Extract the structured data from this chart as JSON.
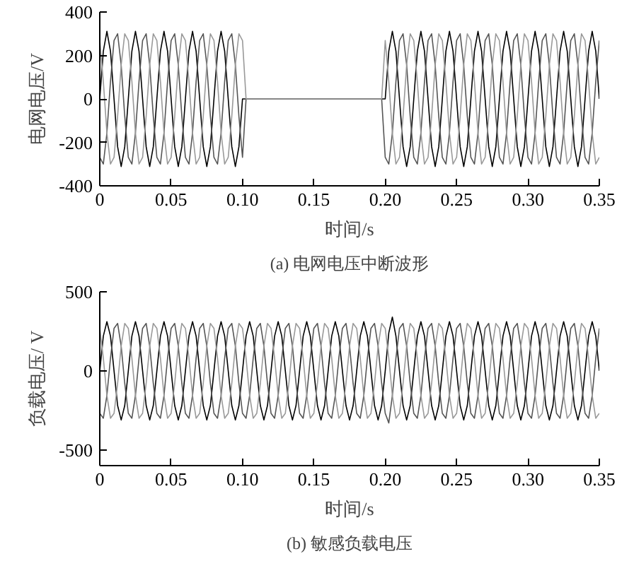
{
  "chart_data": [
    {
      "type": "line",
      "title": "(a) 电网电压中断波形",
      "xlabel": "时间/s",
      "ylabel": "电网电压/V",
      "xlim": [
        0,
        0.35
      ],
      "ylim": [
        -400,
        400
      ],
      "xticks": [
        0,
        0.05,
        {
          "value": 0.1,
          "label": "0.10"
        },
        0.15,
        {
          "value": 0.2,
          "label": "0.20"
        },
        0.25,
        {
          "value": 0.3,
          "label": "0.30"
        },
        0.35
      ],
      "yticks": [
        -400,
        -200,
        0,
        200,
        400
      ],
      "grid": false,
      "x": [
        0,
        0.0025,
        0.005,
        0.0075,
        0.01,
        0.0125,
        0.015,
        0.0175,
        0.02,
        0.0225,
        0.025,
        0.0275,
        0.03,
        0.0325,
        0.035,
        0.0375,
        0.04,
        0.0425,
        0.045,
        0.0475,
        0.05,
        0.0525,
        0.055,
        0.0575,
        0.06,
        0.0625,
        0.065,
        0.0675,
        0.07,
        0.0725,
        0.075,
        0.0775,
        0.08,
        0.0825,
        0.085,
        0.0875,
        0.09,
        0.0925,
        0.095,
        0.0975,
        0.1,
        0.1025,
        0.105,
        0.1075,
        0.11,
        0.1125,
        0.115,
        0.1175,
        0.12,
        0.1225,
        0.125,
        0.1275,
        0.13,
        0.1325,
        0.135,
        0.1375,
        0.14,
        0.1425,
        0.145,
        0.1475,
        0.15,
        0.1525,
        0.155,
        0.1575,
        0.16,
        0.1625,
        0.165,
        0.1675,
        0.17,
        0.1725,
        0.175,
        0.1775,
        0.18,
        0.1825,
        0.185,
        0.1875,
        0.19,
        0.1925,
        0.195,
        0.1975,
        0.2,
        0.2025,
        0.205,
        0.2075,
        0.21,
        0.2125,
        0.215,
        0.2175,
        0.22,
        0.2225,
        0.225,
        0.2275,
        0.23,
        0.2325,
        0.235,
        0.2375,
        0.24,
        0.2425,
        0.245,
        0.2475,
        0.25,
        0.2525,
        0.255,
        0.2575,
        0.26,
        0.2625,
        0.265,
        0.2675,
        0.27,
        0.2725,
        0.275,
        0.2775,
        0.28,
        0.2825,
        0.285,
        0.2875,
        0.29,
        0.2925,
        0.295,
        0.2975,
        0.3,
        0.3025,
        0.305,
        0.3075,
        0.31,
        0.3125,
        0.315,
        0.3175,
        0.32,
        0.3225,
        0.325,
        0.3275,
        0.33,
        0.3325,
        0.335,
        0.3375,
        0.34,
        0.3425,
        0.345,
        0.3475,
        0.35
      ],
      "series": [
        {
          "color": "#000000",
          "values": [
            0,
            220,
            311,
            220,
            0,
            -220,
            -311,
            -220,
            0,
            220,
            311,
            220,
            0,
            -220,
            -311,
            -220,
            0,
            220,
            311,
            220,
            0,
            -220,
            -311,
            -220,
            0,
            220,
            311,
            220,
            0,
            -220,
            -311,
            -220,
            0,
            220,
            311,
            220,
            0,
            -220,
            -311,
            -220,
            0,
            0,
            0,
            0,
            0,
            0,
            0,
            0,
            0,
            0,
            0,
            0,
            0,
            0,
            0,
            0,
            0,
            0,
            0,
            0,
            0,
            0,
            0,
            0,
            0,
            0,
            0,
            0,
            0,
            0,
            0,
            0,
            0,
            0,
            0,
            0,
            0,
            0,
            0,
            0,
            0,
            220,
            311,
            220,
            0,
            -220,
            -311,
            -220,
            0,
            220,
            311,
            220,
            0,
            -220,
            -311,
            -220,
            0,
            220,
            311,
            220,
            0,
            -220,
            -311,
            -220,
            0,
            220,
            311,
            220,
            0,
            -220,
            -311,
            -220,
            0,
            220,
            311,
            220,
            0,
            -220,
            -311,
            -220,
            0,
            220,
            311,
            220,
            0,
            -220,
            -311,
            -220,
            0,
            220,
            311,
            220,
            0,
            -220,
            -311,
            -220,
            0,
            220,
            311,
            220,
            0
          ]
        },
        {
          "color": "#555555",
          "values": [
            -269,
            -300,
            -156,
            80,
            269,
            300,
            156,
            -80,
            -269,
            -300,
            -156,
            80,
            269,
            300,
            156,
            -80,
            -269,
            -300,
            -156,
            80,
            269,
            300,
            156,
            -80,
            -269,
            -300,
            -156,
            80,
            269,
            300,
            156,
            -80,
            -269,
            -300,
            -156,
            80,
            269,
            300,
            156,
            -80,
            -269,
            0,
            0,
            0,
            0,
            0,
            0,
            0,
            0,
            0,
            0,
            0,
            0,
            0,
            0,
            0,
            0,
            0,
            0,
            0,
            0,
            0,
            0,
            0,
            0,
            0,
            0,
            0,
            0,
            0,
            0,
            0,
            0,
            0,
            0,
            0,
            0,
            0,
            0,
            0,
            -269,
            -300,
            -156,
            80,
            269,
            300,
            156,
            -80,
            -269,
            -300,
            -156,
            80,
            269,
            300,
            156,
            -80,
            -269,
            -300,
            -156,
            80,
            269,
            300,
            156,
            -80,
            -269,
            -300,
            -156,
            80,
            269,
            300,
            156,
            -80,
            -269,
            -300,
            -156,
            80,
            269,
            300,
            156,
            -80,
            -269,
            -300,
            -156,
            80,
            269,
            300,
            156,
            -80,
            -269,
            -300,
            -156,
            80,
            269,
            300,
            156,
            -80,
            -269,
            -300,
            -156,
            80,
            269
          ]
        },
        {
          "color": "#999999",
          "values": [
            269,
            80,
            -156,
            -300,
            -269,
            -80,
            156,
            300,
            269,
            80,
            -156,
            -300,
            -269,
            -80,
            156,
            300,
            269,
            80,
            -156,
            -300,
            -269,
            -80,
            156,
            300,
            269,
            80,
            -156,
            -300,
            -269,
            -80,
            156,
            300,
            269,
            80,
            -156,
            -300,
            -269,
            -80,
            156,
            300,
            269,
            0,
            0,
            0,
            0,
            0,
            0,
            0,
            0,
            0,
            0,
            0,
            0,
            0,
            0,
            0,
            0,
            0,
            0,
            0,
            0,
            0,
            0,
            0,
            0,
            0,
            0,
            0,
            0,
            0,
            0,
            0,
            0,
            0,
            0,
            0,
            0,
            0,
            0,
            0,
            269,
            80,
            -156,
            -300,
            -269,
            -80,
            156,
            300,
            269,
            80,
            -156,
            -300,
            -269,
            -80,
            156,
            300,
            269,
            80,
            -156,
            -300,
            -269,
            -80,
            156,
            300,
            269,
            80,
            -156,
            -300,
            -269,
            -80,
            156,
            300,
            269,
            80,
            -156,
            -300,
            -269,
            -80,
            156,
            300,
            269,
            80,
            -156,
            -300,
            -269,
            -80,
            156,
            300,
            269,
            80,
            -156,
            -300,
            -269,
            -80,
            156,
            300,
            269,
            80,
            -156,
            -300,
            -269
          ]
        }
      ]
    },
    {
      "type": "line",
      "title": "(b) 敏感负载电压",
      "xlabel": "时间/s",
      "ylabel": "负载电压/ V",
      "xlim": [
        0,
        0.35
      ],
      "ylim": [
        -600,
        500
      ],
      "xticks": [
        0,
        0.05,
        {
          "value": 0.1,
          "label": "0.10"
        },
        0.15,
        {
          "value": 0.2,
          "label": "0.20"
        },
        0.25,
        {
          "value": 0.3,
          "label": "0.30"
        },
        0.35
      ],
      "yticks": [
        -500,
        0,
        500
      ],
      "grid": false,
      "x": [
        0,
        0.0025,
        0.005,
        0.0075,
        0.01,
        0.0125,
        0.015,
        0.0175,
        0.02,
        0.0225,
        0.025,
        0.0275,
        0.03,
        0.0325,
        0.035,
        0.0375,
        0.04,
        0.0425,
        0.045,
        0.0475,
        0.05,
        0.0525,
        0.055,
        0.0575,
        0.06,
        0.0625,
        0.065,
        0.0675,
        0.07,
        0.0725,
        0.075,
        0.0775,
        0.08,
        0.0825,
        0.085,
        0.0875,
        0.09,
        0.0925,
        0.095,
        0.0975,
        0.1,
        0.1025,
        0.105,
        0.1075,
        0.11,
        0.1125,
        0.115,
        0.1175,
        0.12,
        0.1225,
        0.125,
        0.1275,
        0.13,
        0.1325,
        0.135,
        0.1375,
        0.14,
        0.1425,
        0.145,
        0.1475,
        0.15,
        0.1525,
        0.155,
        0.1575,
        0.16,
        0.1625,
        0.165,
        0.1675,
        0.17,
        0.1725,
        0.175,
        0.1775,
        0.18,
        0.1825,
        0.185,
        0.1875,
        0.19,
        0.1925,
        0.195,
        0.1975,
        0.2,
        0.2025,
        0.205,
        0.2075,
        0.21,
        0.2125,
        0.215,
        0.2175,
        0.22,
        0.2225,
        0.225,
        0.2275,
        0.23,
        0.2325,
        0.235,
        0.2375,
        0.24,
        0.2425,
        0.245,
        0.2475,
        0.25,
        0.2525,
        0.255,
        0.2575,
        0.26,
        0.2625,
        0.265,
        0.2675,
        0.27,
        0.2725,
        0.275,
        0.2775,
        0.28,
        0.2825,
        0.285,
        0.2875,
        0.29,
        0.2925,
        0.295,
        0.2975,
        0.3,
        0.3025,
        0.305,
        0.3075,
        0.31,
        0.3125,
        0.315,
        0.3175,
        0.32,
        0.3225,
        0.325,
        0.3275,
        0.33,
        0.3325,
        0.335,
        0.3375,
        0.34,
        0.3425,
        0.345,
        0.3475,
        0.35
      ],
      "series": [
        {
          "color": "#000000",
          "values": [
            0,
            220,
            311,
            220,
            0,
            -220,
            -311,
            -220,
            0,
            220,
            311,
            220,
            0,
            -220,
            -311,
            -220,
            0,
            220,
            311,
            220,
            0,
            -220,
            -311,
            -220,
            0,
            220,
            311,
            220,
            0,
            -220,
            -311,
            -220,
            0,
            220,
            311,
            220,
            0,
            -220,
            -311,
            -220,
            0,
            220,
            311,
            220,
            0,
            -220,
            -311,
            -220,
            0,
            220,
            311,
            220,
            0,
            -220,
            -311,
            -220,
            0,
            220,
            311,
            220,
            0,
            -220,
            -311,
            -220,
            0,
            220,
            311,
            220,
            0,
            -220,
            -311,
            -220,
            0,
            220,
            311,
            220,
            0,
            -220,
            -311,
            -220,
            0,
            240,
            340,
            220,
            0,
            -220,
            -311,
            -220,
            0,
            220,
            311,
            220,
            0,
            -220,
            -311,
            -220,
            0,
            220,
            311,
            220,
            0,
            -220,
            -311,
            -220,
            0,
            220,
            311,
            220,
            0,
            -220,
            -311,
            -220,
            0,
            220,
            311,
            220,
            0,
            -220,
            -311,
            -220,
            0,
            220,
            311,
            220,
            0,
            -220,
            -311,
            -220,
            0,
            220,
            311,
            220,
            0,
            -220,
            -311,
            -220,
            0,
            220,
            311,
            220,
            0
          ]
        },
        {
          "color": "#555555",
          "values": [
            -269,
            -300,
            -156,
            80,
            269,
            300,
            156,
            -80,
            -269,
            -300,
            -156,
            80,
            269,
            300,
            156,
            -80,
            -269,
            -300,
            -156,
            80,
            269,
            300,
            156,
            -80,
            -269,
            -300,
            -156,
            80,
            269,
            300,
            156,
            -80,
            -269,
            -300,
            -156,
            80,
            269,
            300,
            156,
            -80,
            -269,
            -300,
            -156,
            80,
            269,
            300,
            156,
            -80,
            -269,
            -300,
            -156,
            80,
            269,
            300,
            156,
            -80,
            -269,
            -300,
            -156,
            80,
            269,
            300,
            156,
            -80,
            -269,
            -300,
            -156,
            80,
            269,
            300,
            156,
            -80,
            -269,
            -300,
            -156,
            80,
            269,
            300,
            156,
            -80,
            -269,
            -330,
            -156,
            80,
            269,
            300,
            156,
            -80,
            -269,
            -300,
            -156,
            80,
            269,
            300,
            156,
            -80,
            -269,
            -300,
            -156,
            80,
            269,
            300,
            156,
            -80,
            -269,
            -300,
            -156,
            80,
            269,
            300,
            156,
            -80,
            -269,
            -300,
            -156,
            80,
            269,
            300,
            156,
            -80,
            -269,
            -300,
            -156,
            80,
            269,
            300,
            156,
            -80,
            -269,
            -300,
            -156,
            80,
            269,
            300,
            156,
            -80,
            -269,
            -300,
            -156,
            80,
            269
          ]
        },
        {
          "color": "#999999",
          "values": [
            269,
            80,
            -156,
            -300,
            -269,
            -80,
            156,
            300,
            269,
            80,
            -156,
            -300,
            -269,
            -80,
            156,
            300,
            269,
            80,
            -156,
            -300,
            -269,
            -80,
            156,
            300,
            269,
            80,
            -156,
            -300,
            -269,
            -80,
            156,
            300,
            269,
            80,
            -156,
            -300,
            -269,
            -80,
            156,
            300,
            269,
            80,
            -156,
            -300,
            -269,
            -80,
            156,
            300,
            269,
            80,
            -156,
            -300,
            -269,
            -80,
            156,
            300,
            269,
            80,
            -156,
            -300,
            -269,
            -80,
            156,
            300,
            269,
            80,
            -156,
            -300,
            -269,
            -80,
            156,
            300,
            269,
            80,
            -156,
            -300,
            -269,
            -80,
            156,
            300,
            269,
            80,
            -156,
            -300,
            -269,
            -80,
            156,
            300,
            269,
            80,
            -156,
            -300,
            -269,
            -80,
            156,
            300,
            269,
            80,
            -156,
            -300,
            -269,
            -80,
            156,
            300,
            269,
            80,
            -156,
            -300,
            -269,
            -80,
            156,
            300,
            269,
            80,
            -156,
            -300,
            -269,
            -80,
            156,
            300,
            269,
            80,
            -156,
            -300,
            -269,
            -80,
            156,
            300,
            269,
            80,
            -156,
            -300,
            -269,
            -80,
            156,
            300,
            269,
            80,
            -156,
            -300,
            -269
          ]
        }
      ]
    }
  ]
}
